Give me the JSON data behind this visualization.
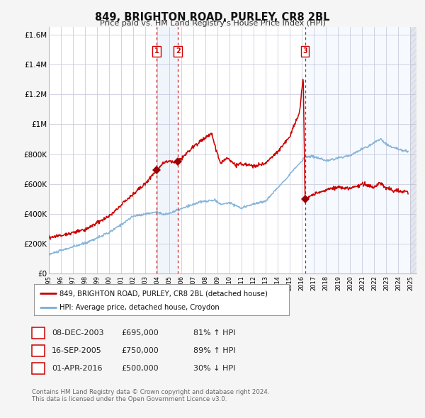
{
  "title": "849, BRIGHTON ROAD, PURLEY, CR8 2BL",
  "subtitle": "Price paid vs. HM Land Registry's House Price Index (HPI)",
  "xlim": [
    1995.0,
    2025.5
  ],
  "ylim": [
    0,
    1650000
  ],
  "yticks": [
    0,
    200000,
    400000,
    600000,
    800000,
    1000000,
    1200000,
    1400000,
    1600000
  ],
  "ytick_labels": [
    "£0",
    "£200K",
    "£400K",
    "£600K",
    "£800K",
    "£1M",
    "£1.2M",
    "£1.4M",
    "£1.6M"
  ],
  "red_line_color": "#cc0000",
  "blue_line_color": "#7aaed6",
  "marker_color": "#990000",
  "transaction_dates": [
    2003.93,
    2005.71,
    2016.25
  ],
  "transaction_prices": [
    695000,
    750000,
    500000
  ],
  "transaction_labels": [
    "1",
    "2",
    "3"
  ],
  "transaction_pct": [
    "81% ↑ HPI",
    "89% ↑ HPI",
    "30% ↓ HPI"
  ],
  "transaction_date_str": [
    "08-DEC-2003",
    "16-SEP-2005",
    "01-APR-2016"
  ],
  "transaction_price_str": [
    "£695,000",
    "£750,000",
    "£500,000"
  ],
  "legend_red_label": "849, BRIGHTON ROAD, PURLEY, CR8 2BL (detached house)",
  "legend_blue_label": "HPI: Average price, detached house, Croydon",
  "footer1": "Contains HM Land Registry data © Crown copyright and database right 2024.",
  "footer2": "This data is licensed under the Open Government Licence v3.0.",
  "plot_bg": "#ffffff",
  "fig_bg": "#f5f5f5",
  "grid_color": "#ccccdd",
  "shade_color": "#ddeeff"
}
